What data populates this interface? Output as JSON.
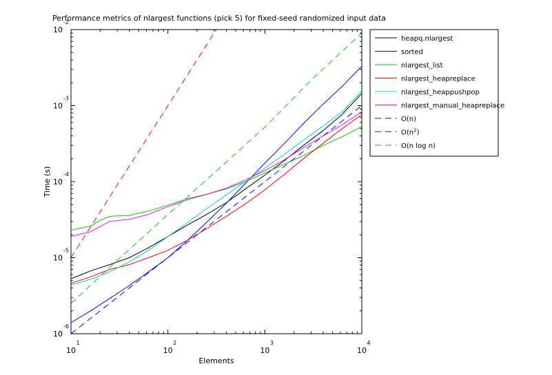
{
  "chart_data": {
    "type": "line",
    "title": "Performance metrics of nlargest functions (pick 5) for fixed-seed randomized input data",
    "xlabel": "Elements",
    "ylabel": "Time (s)",
    "xscale": "log",
    "yscale": "log",
    "xlim": [
      10,
      10000
    ],
    "ylim": [
      1e-06,
      0.01
    ],
    "x_ticks": [
      {
        "base": "10",
        "exp": "1",
        "value": 10
      },
      {
        "base": "10",
        "exp": "2",
        "value": 100
      },
      {
        "base": "10",
        "exp": "3",
        "value": 1000
      },
      {
        "base": "10",
        "exp": "4",
        "value": 10000
      }
    ],
    "y_ticks": [
      {
        "base": "10",
        "exp": "-6",
        "value": 1e-06
      },
      {
        "base": "10",
        "exp": "-5",
        "value": 1e-05
      },
      {
        "base": "10",
        "exp": "-4",
        "value": 0.0001
      },
      {
        "base": "10",
        "exp": "-3",
        "value": 0.001
      },
      {
        "base": "10",
        "exp": "-2",
        "value": 0.01
      }
    ],
    "grid": false,
    "legend_position": "outside-right",
    "series": [
      {
        "name": "heapq.nlargest",
        "color": "#000000",
        "dash": "solid",
        "points": [
          [
            10,
            5.3e-06
          ],
          [
            16,
            6.7e-06
          ],
          [
            25,
            8.1e-06
          ],
          [
            40,
            1e-05
          ],
          [
            63,
            1.35e-05
          ],
          [
            100,
            1.9e-05
          ],
          [
            160,
            2.7e-05
          ],
          [
            250,
            3.7e-05
          ],
          [
            400,
            5.3e-05
          ],
          [
            630,
            8e-05
          ],
          [
            1000,
            0.000122
          ],
          [
            1600,
            0.00019
          ],
          [
            2500,
            0.0003
          ],
          [
            4000,
            0.00047
          ],
          [
            6300,
            0.00077
          ],
          [
            10000,
            0.00145
          ]
        ]
      },
      {
        "name": "sorted",
        "color": "#0000ff",
        "dash": "solid",
        "points": [
          [
            10,
            1.4e-06
          ],
          [
            16,
            2e-06
          ],
          [
            25,
            2.9e-06
          ],
          [
            40,
            4.3e-06
          ],
          [
            63,
            6.5e-06
          ],
          [
            100,
            1e-05
          ],
          [
            160,
            1.7e-05
          ],
          [
            250,
            2.9e-05
          ],
          [
            400,
            5.2e-05
          ],
          [
            630,
            9.5e-05
          ],
          [
            1000,
            0.000175
          ],
          [
            1600,
            0.00032
          ],
          [
            2500,
            0.00058
          ],
          [
            4000,
            0.00105
          ],
          [
            6300,
            0.0018
          ],
          [
            10000,
            0.0033
          ]
        ]
      },
      {
        "name": "nlargest_list",
        "color": "#00cc00",
        "dash": "solid",
        "points": [
          [
            10,
            2.3e-05
          ],
          [
            16,
            2.6e-05
          ],
          [
            20,
            3.1e-05
          ],
          [
            25,
            3.5e-05
          ],
          [
            40,
            3.6e-05
          ],
          [
            63,
            4.1e-05
          ],
          [
            100,
            4.9e-05
          ],
          [
            160,
            6e-05
          ],
          [
            250,
            6.8e-05
          ],
          [
            400,
            8e-05
          ],
          [
            630,
            0.0001
          ],
          [
            1000,
            0.00013
          ],
          [
            1600,
            0.00017
          ],
          [
            2500,
            0.00022
          ],
          [
            4000,
            0.0003
          ],
          [
            6300,
            0.00039
          ],
          [
            10000,
            0.00053
          ]
        ]
      },
      {
        "name": "nlargest_heapreplace",
        "color": "#ff0000",
        "dash": "solid",
        "points": [
          [
            10,
            4.6e-06
          ],
          [
            16,
            5.6e-06
          ],
          [
            25,
            7e-06
          ],
          [
            40,
            8.1e-06
          ],
          [
            63,
            1e-05
          ],
          [
            100,
            1.25e-05
          ],
          [
            160,
            1.7e-05
          ],
          [
            250,
            2.4e-05
          ],
          [
            400,
            3.5e-05
          ],
          [
            630,
            5.1e-05
          ],
          [
            1000,
            7.8e-05
          ],
          [
            1600,
            0.000125
          ],
          [
            2500,
            0.0002
          ],
          [
            4000,
            0.00032
          ],
          [
            6300,
            0.0005
          ],
          [
            10000,
            0.00076
          ]
        ]
      },
      {
        "name": "nlargest_heappushpop",
        "color": "#00cccc",
        "dash": "solid",
        "points": [
          [
            10,
            4.4e-06
          ],
          [
            16,
            5.2e-06
          ],
          [
            25,
            6.5e-06
          ],
          [
            40,
            8.8e-06
          ],
          [
            63,
            1.25e-05
          ],
          [
            100,
            1.9e-05
          ],
          [
            160,
            2.9e-05
          ],
          [
            250,
            4.4e-05
          ],
          [
            400,
            6.7e-05
          ],
          [
            630,
            0.0001
          ],
          [
            1000,
            0.00015
          ],
          [
            1600,
            0.00023
          ],
          [
            2500,
            0.00035
          ],
          [
            4000,
            0.00054
          ],
          [
            6300,
            0.00083
          ],
          [
            10000,
            0.00155
          ]
        ]
      },
      {
        "name": "nlargest_manual_heapreplace",
        "color": "#ff00ff",
        "dash": "solid",
        "points": [
          [
            10,
            1.9e-05
          ],
          [
            16,
            2.2e-05
          ],
          [
            25,
            3e-05
          ],
          [
            40,
            3.2e-05
          ],
          [
            63,
            3.7e-05
          ],
          [
            100,
            4.7e-05
          ],
          [
            160,
            5.8e-05
          ],
          [
            250,
            6.8e-05
          ],
          [
            400,
            8.2e-05
          ],
          [
            630,
            0.000105
          ],
          [
            1000,
            0.00014
          ],
          [
            1600,
            0.000195
          ],
          [
            2500,
            0.00028
          ],
          [
            4000,
            0.0004
          ],
          [
            6300,
            0.00056
          ],
          [
            10000,
            0.00083
          ]
        ]
      },
      {
        "name": "O(n)",
        "color": "#0000ff",
        "dash": "dashed",
        "points": [
          [
            10,
            1e-06
          ],
          [
            10000,
            0.001
          ]
        ]
      },
      {
        "name": "O(n²)",
        "name_base": "O(n",
        "name_sup": "2",
        "name_tail": ")",
        "color": "#ff0000",
        "dash": "dashed",
        "points": [
          [
            10,
            1e-05
          ],
          [
            17.78,
            3.16e-05
          ],
          [
            31.62,
            0.0001
          ],
          [
            56.23,
            0.000316
          ],
          [
            100,
            0.001
          ],
          [
            177.8,
            0.00316
          ],
          [
            316.2,
            0.01
          ]
        ]
      },
      {
        "name": "O(n log n)",
        "color": "#00cc00",
        "dash": "dashed",
        "points": [
          [
            10,
            2.5e-06
          ],
          [
            31.6,
            9.8e-06
          ],
          [
            100,
            3.7e-05
          ],
          [
            316,
            0.000138
          ],
          [
            1000,
            0.00052
          ],
          [
            3160,
            0.0023
          ],
          [
            10000,
            0.009
          ]
        ]
      }
    ]
  }
}
